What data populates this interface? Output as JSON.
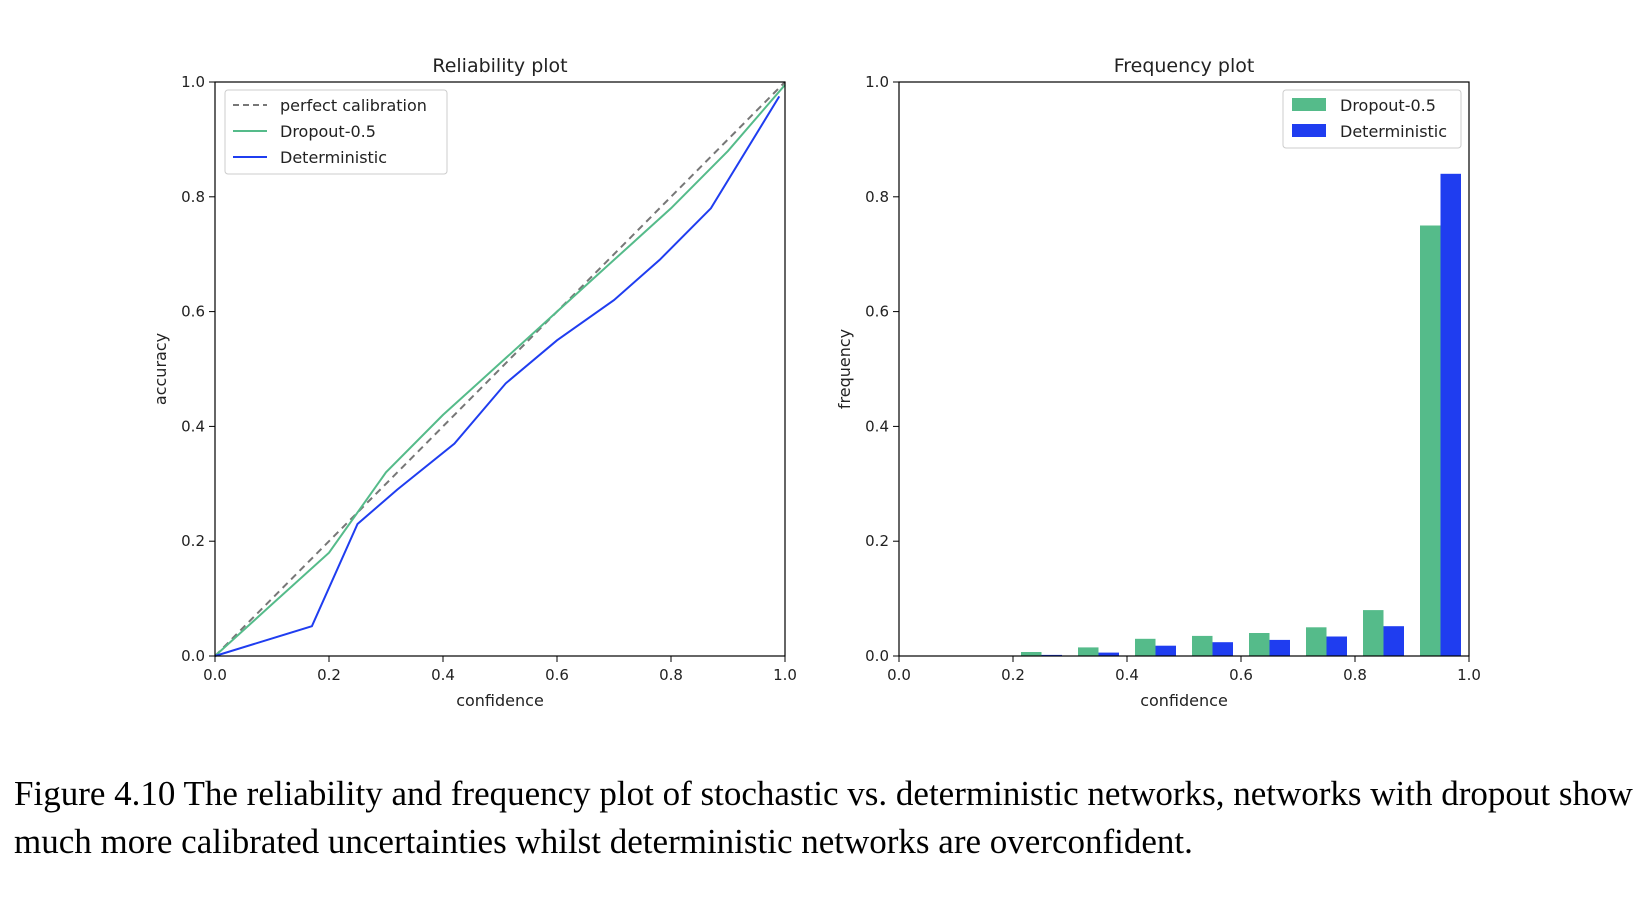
{
  "colors": {
    "dropout": "#55bb8a",
    "deterministic": "#1f3df0",
    "perfect": "#777777"
  },
  "chart_data": [
    {
      "type": "line",
      "title": "Reliability plot",
      "xlabel": "confidence",
      "ylabel": "accuracy",
      "xlim": [
        0,
        1
      ],
      "ylim": [
        0,
        1
      ],
      "xticks": [
        "0.0",
        "0.2",
        "0.4",
        "0.6",
        "0.8",
        "1.0"
      ],
      "yticks": [
        "0.0",
        "0.2",
        "0.4",
        "0.6",
        "0.8",
        "1.0"
      ],
      "legend_position": "top-left",
      "series": [
        {
          "name": "perfect calibration",
          "style": "dashed",
          "color": "#777777",
          "x": [
            0,
            1
          ],
          "y": [
            0,
            1
          ]
        },
        {
          "name": "Dropout-0.5",
          "style": "solid",
          "color": "#55bb8a",
          "x": [
            0,
            0.1,
            0.2,
            0.3,
            0.4,
            0.5,
            0.6,
            0.7,
            0.8,
            0.9,
            1.0
          ],
          "y": [
            0,
            0.09,
            0.18,
            0.32,
            0.42,
            0.51,
            0.6,
            0.69,
            0.78,
            0.88,
            0.995
          ]
        },
        {
          "name": "Deterministic",
          "style": "solid",
          "color": "#1f3df0",
          "x": [
            0,
            0.17,
            0.25,
            0.32,
            0.42,
            0.51,
            0.6,
            0.7,
            0.78,
            0.87,
            0.99
          ],
          "y": [
            0,
            0.052,
            0.23,
            0.29,
            0.37,
            0.475,
            0.55,
            0.62,
            0.69,
            0.78,
            0.975
          ]
        }
      ]
    },
    {
      "type": "bar",
      "title": "Frequency plot",
      "xlabel": "confidence",
      "ylabel": "frequency",
      "xlim": [
        0,
        1
      ],
      "ylim": [
        0,
        1
      ],
      "xticks": [
        "0.0",
        "0.2",
        "0.4",
        "0.6",
        "0.8",
        "1.0"
      ],
      "yticks": [
        "0.0",
        "0.2",
        "0.4",
        "0.6",
        "0.8",
        "1.0"
      ],
      "legend_position": "top-right",
      "categories": [
        0.05,
        0.15,
        0.25,
        0.35,
        0.45,
        0.55,
        0.65,
        0.75,
        0.85,
        0.95
      ],
      "series": [
        {
          "name": "Dropout-0.5",
          "color": "#55bb8a",
          "values": [
            0,
            0,
            0.007,
            0.015,
            0.03,
            0.035,
            0.04,
            0.05,
            0.08,
            0.75
          ]
        },
        {
          "name": "Deterministic",
          "color": "#1f3df0",
          "values": [
            0,
            0,
            0.002,
            0.006,
            0.018,
            0.024,
            0.028,
            0.034,
            0.052,
            0.84
          ]
        }
      ]
    }
  ],
  "caption": "Figure 4.10 The reliability and frequency plot of stochastic vs. deterministic networks, networks with dropout show much more calibrated uncertainties whilst deterministic networks are overconfident."
}
